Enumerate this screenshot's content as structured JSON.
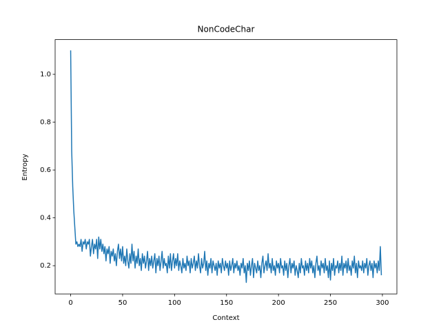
{
  "chart_data": {
    "type": "line",
    "title": "NonCodeChar",
    "x_label": "Context",
    "y_label": "Entropy",
    "x": [
      0,
      1,
      2,
      3,
      4,
      5,
      6,
      7,
      8,
      9,
      10,
      11,
      12,
      13,
      14,
      15,
      16,
      17,
      18,
      19,
      20,
      21,
      22,
      23,
      24,
      25,
      26,
      27,
      28,
      29,
      30,
      31,
      32,
      33,
      34,
      35,
      36,
      37,
      38,
      39,
      40,
      41,
      42,
      43,
      44,
      45,
      46,
      47,
      48,
      49,
      50,
      51,
      52,
      53,
      54,
      55,
      56,
      57,
      58,
      59,
      60,
      61,
      62,
      63,
      64,
      65,
      66,
      67,
      68,
      69,
      70,
      71,
      72,
      73,
      74,
      75,
      76,
      77,
      78,
      79,
      80,
      81,
      82,
      83,
      84,
      85,
      86,
      87,
      88,
      89,
      90,
      91,
      92,
      93,
      94,
      95,
      96,
      97,
      98,
      99,
      100,
      101,
      102,
      103,
      104,
      105,
      106,
      107,
      108,
      109,
      110,
      111,
      112,
      113,
      114,
      115,
      116,
      117,
      118,
      119,
      120,
      121,
      122,
      123,
      124,
      125,
      126,
      127,
      128,
      129,
      130,
      131,
      132,
      133,
      134,
      135,
      136,
      137,
      138,
      139,
      140,
      141,
      142,
      143,
      144,
      145,
      146,
      147,
      148,
      149,
      150,
      151,
      152,
      153,
      154,
      155,
      156,
      157,
      158,
      159,
      160,
      161,
      162,
      163,
      164,
      165,
      166,
      167,
      168,
      169,
      170,
      171,
      172,
      173,
      174,
      175,
      176,
      177,
      178,
      179,
      180,
      181,
      182,
      183,
      184,
      185,
      186,
      187,
      188,
      189,
      190,
      191,
      192,
      193,
      194,
      195,
      196,
      197,
      198,
      199,
      200,
      201,
      202,
      203,
      204,
      205,
      206,
      207,
      208,
      209,
      210,
      211,
      212,
      213,
      214,
      215,
      216,
      217,
      218,
      219,
      220,
      221,
      222,
      223,
      224,
      225,
      226,
      227,
      228,
      229,
      230,
      231,
      232,
      233,
      234,
      235,
      236,
      237,
      238,
      239,
      240,
      241,
      242,
      243,
      244,
      245,
      246,
      247,
      248,
      249,
      250,
      251,
      252,
      253,
      254,
      255,
      256,
      257,
      258,
      259,
      260,
      261,
      262,
      263,
      264,
      265,
      266,
      267,
      268,
      269,
      270,
      271,
      272,
      273,
      274,
      275,
      276,
      277,
      278,
      279,
      280,
      281,
      282,
      283,
      284,
      285,
      286,
      287,
      288,
      289,
      290,
      291,
      292,
      293,
      294,
      295,
      296,
      297,
      298,
      299
    ],
    "series": [
      {
        "color": "#1f77b4",
        "values": [
          1.1,
          0.68,
          0.53,
          0.43,
          0.36,
          0.29,
          0.3,
          0.28,
          0.29,
          0.28,
          0.31,
          0.26,
          0.3,
          0.29,
          0.31,
          0.27,
          0.3,
          0.29,
          0.31,
          0.24,
          0.28,
          0.31,
          0.25,
          0.29,
          0.27,
          0.31,
          0.23,
          0.32,
          0.27,
          0.31,
          0.26,
          0.29,
          0.25,
          0.28,
          0.22,
          0.27,
          0.25,
          0.28,
          0.21,
          0.26,
          0.24,
          0.27,
          0.22,
          0.25,
          0.2,
          0.26,
          0.29,
          0.23,
          0.27,
          0.22,
          0.28,
          0.21,
          0.24,
          0.2,
          0.27,
          0.22,
          0.19,
          0.25,
          0.21,
          0.29,
          0.22,
          0.26,
          0.19,
          0.24,
          0.21,
          0.27,
          0.2,
          0.23,
          0.18,
          0.25,
          0.21,
          0.24,
          0.19,
          0.22,
          0.26,
          0.18,
          0.23,
          0.2,
          0.24,
          0.19,
          0.22,
          0.25,
          0.17,
          0.23,
          0.2,
          0.24,
          0.18,
          0.22,
          0.26,
          0.19,
          0.23,
          0.2,
          0.21,
          0.17,
          0.24,
          0.19,
          0.25,
          0.18,
          0.22,
          0.25,
          0.19,
          0.23,
          0.2,
          0.25,
          0.18,
          0.22,
          0.2,
          0.17,
          0.23,
          0.19,
          0.21,
          0.18,
          0.24,
          0.2,
          0.22,
          0.17,
          0.23,
          0.19,
          0.21,
          0.24,
          0.18,
          0.22,
          0.19,
          0.25,
          0.2,
          0.17,
          0.23,
          0.19,
          0.21,
          0.26,
          0.18,
          0.22,
          0.16,
          0.21,
          0.19,
          0.23,
          0.17,
          0.22,
          0.2,
          0.18,
          0.21,
          0.16,
          0.22,
          0.19,
          0.21,
          0.17,
          0.23,
          0.2,
          0.18,
          0.22,
          0.19,
          0.21,
          0.16,
          0.22,
          0.18,
          0.2,
          0.23,
          0.17,
          0.21,
          0.19,
          0.22,
          0.18,
          0.2,
          0.16,
          0.21,
          0.19,
          0.23,
          0.17,
          0.2,
          0.13,
          0.21,
          0.18,
          0.22,
          0.16,
          0.2,
          0.23,
          0.15,
          0.21,
          0.19,
          0.17,
          0.22,
          0.18,
          0.2,
          0.15,
          0.21,
          0.24,
          0.17,
          0.2,
          0.22,
          0.18,
          0.25,
          0.19,
          0.21,
          0.17,
          0.23,
          0.18,
          0.2,
          0.16,
          0.22,
          0.19,
          0.21,
          0.17,
          0.23,
          0.19,
          0.2,
          0.16,
          0.22,
          0.18,
          0.21,
          0.15,
          0.2,
          0.23,
          0.17,
          0.21,
          0.19,
          0.22,
          0.16,
          0.2,
          0.18,
          0.15,
          0.21,
          0.17,
          0.23,
          0.19,
          0.2,
          0.16,
          0.22,
          0.18,
          0.21,
          0.17,
          0.23,
          0.19,
          0.22,
          0.17,
          0.2,
          0.15,
          0.21,
          0.24,
          0.18,
          0.2,
          0.16,
          0.22,
          0.19,
          0.21,
          0.17,
          0.23,
          0.18,
          0.2,
          0.15,
          0.22,
          0.14,
          0.21,
          0.18,
          0.23,
          0.16,
          0.2,
          0.19,
          0.22,
          0.17,
          0.21,
          0.18,
          0.24,
          0.16,
          0.21,
          0.19,
          0.22,
          0.17,
          0.23,
          0.18,
          0.2,
          0.16,
          0.22,
          0.19,
          0.24,
          0.17,
          0.21,
          0.15,
          0.22,
          0.19,
          0.2,
          0.18,
          0.22,
          0.17,
          0.21,
          0.19,
          0.23,
          0.16,
          0.2,
          0.22,
          0.18,
          0.21,
          0.15,
          0.22,
          0.19,
          0.21,
          0.17,
          0.22,
          0.18,
          0.28,
          0.16
        ]
      }
    ],
    "xlim": [
      -14.95,
      313.95
    ],
    "ylim": [
      0.082,
      1.145
    ],
    "xticks": [
      0,
      50,
      100,
      150,
      200,
      250,
      300
    ],
    "yticks": [
      0.2,
      0.4,
      0.6,
      0.8,
      {
        "value": 1,
        "label": "1.0"
      }
    ]
  }
}
